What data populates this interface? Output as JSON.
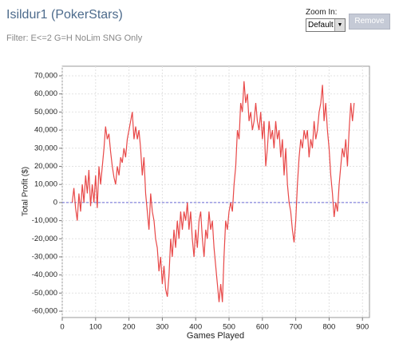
{
  "header": {
    "title": "Isildur1 (PokerStars)",
    "filter": "Filter: E<=2 G=H NoLim SNG Only"
  },
  "controls": {
    "zoom_label": "Zoom In:",
    "zoom_value": "Default",
    "button": "Remove"
  },
  "chart_data": {
    "type": "line",
    "xlabel": "Games Played",
    "ylabel": "Total Profit ($)",
    "color": "#e84848",
    "grid": true,
    "zero_line": true,
    "xlim": [
      0,
      921
    ],
    "xticks": [
      0,
      100,
      200,
      300,
      400,
      500,
      600,
      700,
      800,
      900
    ],
    "ylim": [
      -63500,
      75300
    ],
    "yticks": [
      {
        "value": -60000,
        "label": "-60,000"
      },
      {
        "value": -50000,
        "label": "-50,000"
      },
      {
        "value": -40000,
        "label": "-40,000"
      },
      {
        "value": -30000,
        "label": "-30,000"
      },
      {
        "value": -20000,
        "label": "-20,000"
      },
      {
        "value": -10000,
        "label": "-10,000"
      },
      0,
      {
        "value": 10000,
        "label": "10,000"
      },
      {
        "value": 20000,
        "label": "20,000"
      },
      {
        "value": 30000,
        "label": "30,000"
      },
      {
        "value": 40000,
        "label": "40,000"
      },
      {
        "value": 50000,
        "label": "50,000"
      },
      {
        "value": 60000,
        "label": "60,000"
      },
      {
        "value": 70000,
        "label": "70,000"
      }
    ],
    "x": [
      30,
      35,
      40,
      45,
      50,
      55,
      60,
      65,
      70,
      75,
      80,
      85,
      90,
      95,
      100,
      105,
      110,
      115,
      120,
      125,
      130,
      135,
      140,
      145,
      150,
      155,
      160,
      165,
      170,
      175,
      180,
      185,
      190,
      195,
      200,
      205,
      210,
      215,
      220,
      225,
      230,
      235,
      240,
      245,
      250,
      255,
      260,
      265,
      270,
      275,
      280,
      285,
      290,
      295,
      300,
      305,
      310,
      315,
      320,
      325,
      330,
      335,
      340,
      345,
      350,
      355,
      360,
      365,
      370,
      375,
      380,
      385,
      390,
      395,
      400,
      405,
      410,
      415,
      420,
      425,
      430,
      435,
      440,
      445,
      450,
      455,
      460,
      465,
      470,
      475,
      480,
      485,
      490,
      495,
      500,
      505,
      510,
      515,
      520,
      525,
      530,
      535,
      540,
      545,
      550,
      555,
      560,
      565,
      570,
      575,
      580,
      585,
      590,
      595,
      600,
      605,
      610,
      615,
      620,
      625,
      630,
      635,
      640,
      645,
      650,
      655,
      660,
      665,
      670,
      675,
      680,
      685,
      690,
      695,
      700,
      705,
      710,
      715,
      720,
      725,
      730,
      735,
      740,
      745,
      750,
      755,
      760,
      765,
      770,
      775,
      780,
      785,
      790,
      795,
      800,
      805,
      810,
      815,
      820,
      825,
      830,
      835,
      840,
      845,
      850,
      855,
      860,
      865,
      870,
      875
    ],
    "values": [
      0,
      8000,
      -3000,
      -10000,
      5000,
      -5000,
      10000,
      0,
      15000,
      5000,
      18000,
      -2000,
      10000,
      0,
      15000,
      -3000,
      20000,
      10000,
      20000,
      30000,
      42000,
      35000,
      38000,
      28000,
      20000,
      14000,
      10000,
      20000,
      15000,
      25000,
      22000,
      30000,
      25000,
      35000,
      40000,
      45000,
      50000,
      35000,
      42000,
      35000,
      40000,
      30000,
      15000,
      25000,
      5000,
      -5000,
      -15000,
      5000,
      -5000,
      -10000,
      -20000,
      -25000,
      -38000,
      -30000,
      -45000,
      -35000,
      -48000,
      -52000,
      -40000,
      -20000,
      -30000,
      -15000,
      -25000,
      -10000,
      -20000,
      -5000,
      -15000,
      -5000,
      -10000,
      0,
      -15000,
      -5000,
      -20000,
      -30000,
      -15000,
      -25000,
      -10000,
      -5000,
      -20000,
      -30000,
      -15000,
      -20000,
      -5000,
      -15000,
      -10000,
      -25000,
      -35000,
      -45000,
      -55000,
      -45000,
      -55000,
      -30000,
      -10000,
      -15000,
      -5000,
      0,
      -5000,
      10000,
      20000,
      40000,
      35000,
      55000,
      50000,
      67000,
      55000,
      60000,
      45000,
      50000,
      40000,
      45000,
      55000,
      45000,
      40000,
      50000,
      35000,
      45000,
      20000,
      30000,
      45000,
      35000,
      40000,
      30000,
      45000,
      35000,
      40000,
      25000,
      35000,
      15000,
      30000,
      10000,
      0,
      -5000,
      -15000,
      -22000,
      -10000,
      10000,
      25000,
      35000,
      30000,
      40000,
      35000,
      40000,
      25000,
      35000,
      30000,
      45000,
      35000,
      40000,
      50000,
      55000,
      65000,
      45000,
      55000,
      40000,
      30000,
      15000,
      5000,
      -8000,
      0,
      -5000,
      10000,
      20000,
      30000,
      25000,
      35000,
      20000,
      40000,
      55000,
      45000,
      55000
    ]
  }
}
